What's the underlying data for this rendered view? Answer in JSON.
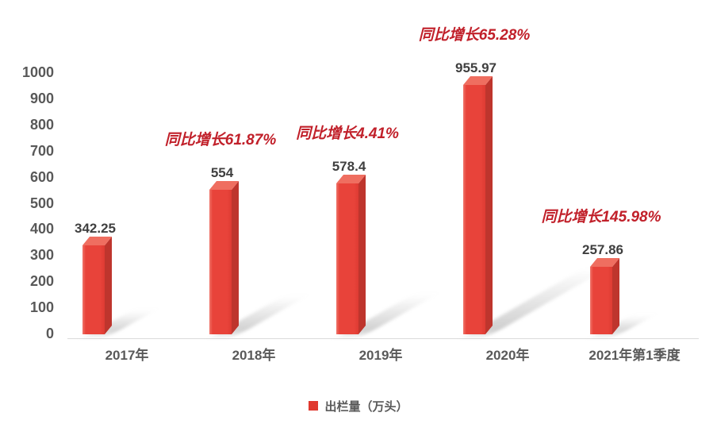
{
  "chart_data": {
    "type": "bar",
    "title": "",
    "categories": [
      "2017年",
      "2018年",
      "2019年",
      "2020年",
      "2021年第1季度"
    ],
    "series": [
      {
        "name": "出栏量（万头）",
        "values": [
          342.25,
          554,
          578.4,
          955.97,
          257.86
        ]
      }
    ],
    "value_labels": [
      "342.25",
      "554",
      "578.4",
      "955.97",
      "257.86"
    ],
    "annotations": [
      {
        "text": "同比增长61.87%",
        "category_index": 1
      },
      {
        "text": "同比增长4.41%",
        "category_index": 2
      },
      {
        "text": "同比增长65.28%",
        "category_index": 3
      },
      {
        "text": "同比增长145.98%",
        "category_index": 4
      }
    ],
    "y_axis": {
      "min": 0,
      "max": 1000,
      "step": 100,
      "ticks": [
        "0",
        "100",
        "200",
        "300",
        "400",
        "500",
        "600",
        "700",
        "800",
        "900",
        "1000"
      ]
    },
    "grid": "off",
    "legend": {
      "position": "bottom-center",
      "label": "出栏量（万头）"
    },
    "colors": {
      "bar_front": "#E8433A",
      "bar_front_edge": "#F0756A",
      "bar_side": "#BE352D",
      "bar_top": "#EF6E60",
      "annotation_text": "#C1202A",
      "value_label_text": "#3F3F3F",
      "axis_text": "#595959",
      "axis_line": "#DBDBDB",
      "legend_marker": "#E0392F",
      "shadow": "#8C8C8C"
    }
  }
}
